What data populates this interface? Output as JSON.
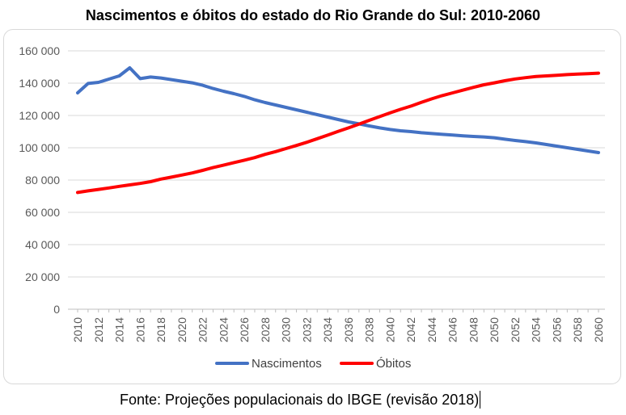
{
  "chart_data": {
    "type": "line",
    "title": "Nascimentos e óbitos do estado do Rio Grande do Sul: 2010-2060",
    "xlabel": "",
    "ylabel": "",
    "ylim": [
      0,
      160000
    ],
    "yticks": [
      0,
      20000,
      40000,
      60000,
      80000,
      100000,
      120000,
      140000,
      160000
    ],
    "ytick_labels": [
      "0",
      "20 000",
      "40 000",
      "60 000",
      "80 000",
      "100 000",
      "120 000",
      "140 000",
      "160 000"
    ],
    "x": [
      2010,
      2011,
      2012,
      2013,
      2014,
      2015,
      2016,
      2017,
      2018,
      2019,
      2020,
      2021,
      2022,
      2023,
      2024,
      2025,
      2026,
      2027,
      2028,
      2029,
      2030,
      2031,
      2032,
      2033,
      2034,
      2035,
      2036,
      2037,
      2038,
      2039,
      2040,
      2041,
      2042,
      2043,
      2044,
      2045,
      2046,
      2047,
      2048,
      2049,
      2050,
      2051,
      2052,
      2053,
      2054,
      2055,
      2056,
      2057,
      2058,
      2059,
      2060
    ],
    "xtick_labels": [
      "2010",
      "2012",
      "2014",
      "2016",
      "2018",
      "2020",
      "2022",
      "2024",
      "2026",
      "2028",
      "2030",
      "2032",
      "2034",
      "2036",
      "2038",
      "2040",
      "2042",
      "2044",
      "2046",
      "2048",
      "2050",
      "2052",
      "2054",
      "2056",
      "2058",
      "2060"
    ],
    "grid": true,
    "legend_position": "bottom",
    "series": [
      {
        "name": "Nascimentos",
        "color": "#4472c4",
        "values": [
          134000,
          139800,
          140500,
          142500,
          144500,
          149500,
          142800,
          143800,
          143200,
          142200,
          141200,
          140200,
          138700,
          136700,
          135000,
          133500,
          131800,
          129700,
          128000,
          126500,
          125000,
          123500,
          122000,
          120500,
          119000,
          117500,
          116000,
          114800,
          113500,
          112300,
          111300,
          110500,
          110000,
          109300,
          108800,
          108300,
          107900,
          107400,
          107000,
          106700,
          106200,
          105300,
          104500,
          103800,
          103000,
          102000,
          101000,
          100000,
          99000,
          98000,
          97000
        ]
      },
      {
        "name": "Óbitos",
        "color": "#ff0000",
        "values": [
          72300,
          73300,
          74200,
          75100,
          76100,
          77000,
          77900,
          79000,
          80600,
          81800,
          83100,
          84400,
          86000,
          87700,
          89200,
          90800,
          92300,
          93900,
          95900,
          97600,
          99500,
          101400,
          103400,
          105600,
          107800,
          110100,
          112300,
          114600,
          117000,
          119300,
          121600,
          123800,
          125800,
          128100,
          130300,
          132300,
          134000,
          135700,
          137400,
          139000,
          140200,
          141500,
          142600,
          143400,
          144100,
          144500,
          144900,
          145300,
          145600,
          145900,
          146200
        ]
      }
    ]
  },
  "caption": "Fonte: Projeções populacionais do IBGE (revisão 2018)"
}
